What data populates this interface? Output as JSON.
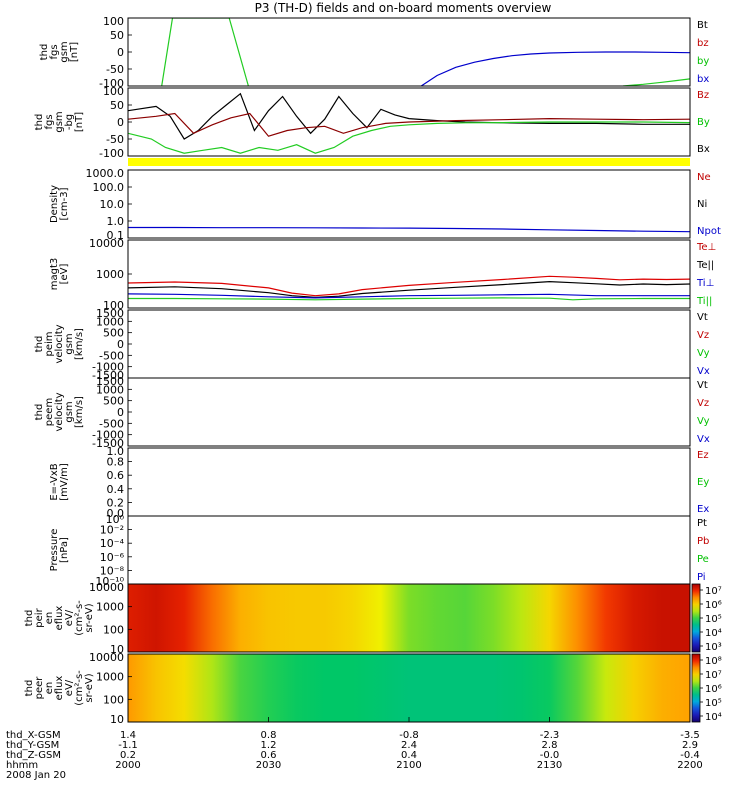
{
  "title": "P3 (TH-D) fields and on-board moments overview",
  "chart_data": {
    "type": "line",
    "title": "P3 (TH-D) fields and on-board moments overview",
    "x_axis": {
      "tick_labels": {
        "X_GSM": [
          "1.4",
          "0.8",
          "-0.8",
          "-2.3",
          "-3.5"
        ],
        "Y_GSM": [
          "-1.1",
          "1.2",
          "2.4",
          "2.8",
          "2.9"
        ],
        "Z_GSM": [
          "0.2",
          "0.6",
          "0.4",
          "-0.0",
          "-0.4"
        ],
        "hhmm": [
          "2000",
          "2030",
          "2100",
          "2130",
          "2200"
        ]
      },
      "row_labels": [
        "thd_X-GSM",
        "thd_Y-GSM",
        "thd_Z-GSM",
        "hhmm"
      ],
      "date_label": "2008 Jan 20",
      "range_minutes": [
        0,
        120
      ]
    },
    "panels": [
      {
        "ylabel": [
          "thd",
          "fgs",
          "gsm",
          "[nT]"
        ],
        "ylim": [
          -100,
          100
        ],
        "yticks": [
          "100",
          "50",
          "0",
          "-50",
          "-100"
        ],
        "legend": [
          {
            "name": "Bt",
            "color": "#000000"
          },
          {
            "name": "bz",
            "color": "#c00000"
          },
          {
            "name": "by",
            "color": "#00c000"
          },
          {
            "name": "bx",
            "color": "#0000cc"
          }
        ],
        "series": [
          {
            "name": "by",
            "color": "#22cc22",
            "x": [
              7.2,
              9.5,
              21.6,
              25.7
            ],
            "y": [
              -100,
              100,
              100,
              -100
            ]
          },
          {
            "name": "by",
            "color": "#22cc22",
            "x": [
              105.7,
              110,
              114,
              117,
              120
            ],
            "y": [
              -100,
              -95,
              -89,
              -84,
              -79
            ]
          },
          {
            "name": "bx",
            "color": "#0000cc",
            "x": [
              62.6,
              66,
              70,
              74,
              78,
              82,
              86,
              90,
              96,
              102,
              108,
              114,
              120
            ],
            "y": [
              -100,
              -69,
              -45,
              -30,
              -19,
              -11,
              -6,
              -3,
              -1,
              0,
              0,
              -1,
              -2
            ]
          }
        ]
      },
      {
        "ylabel": [
          "thd",
          "fgs",
          "gsm",
          "-bg",
          "[nT]"
        ],
        "ylim": [
          -120,
          120
        ],
        "yticks": [
          "100",
          "50",
          "0",
          "-50",
          "-100"
        ],
        "legend": [
          {
            "name": "Bz",
            "color": "#c00000"
          },
          {
            "name": "By",
            "color": "#00c000"
          },
          {
            "name": "Bx",
            "color": "#000000"
          }
        ],
        "series": [
          {
            "name": "Bx",
            "color": "#000000",
            "x": [
              0,
              6,
              9,
              12,
              15,
              18,
              21,
              24,
              27,
              30,
              33,
              36,
              39,
              42,
              45,
              48,
              51,
              54,
              57,
              60,
              66,
              72,
              80,
              90,
              100,
              110,
              120
            ],
            "y": [
              40,
              55,
              20,
              -60,
              -30,
              20,
              60,
              100,
              -30,
              40,
              90,
              20,
              -40,
              10,
              90,
              30,
              -20,
              45,
              25,
              12,
              5,
              0,
              -3,
              -5,
              -5,
              -8,
              -8
            ]
          },
          {
            "name": "Bz",
            "color": "#8b0000",
            "x": [
              0,
              6,
              10,
              14,
              18,
              22,
              26,
              30,
              34,
              38,
              42,
              46,
              50,
              55,
              60,
              70,
              80,
              90,
              100,
              110,
              120
            ],
            "y": [
              10,
              20,
              30,
              -40,
              -10,
              15,
              30,
              -50,
              -30,
              -20,
              -15,
              -40,
              -20,
              -5,
              0,
              5,
              8,
              12,
              10,
              8,
              10
            ]
          },
          {
            "name": "By",
            "color": "#22cc22",
            "x": [
              0,
              5,
              8,
              12,
              16,
              20,
              24,
              28,
              32,
              36,
              40,
              44,
              48,
              52,
              56,
              60,
              66,
              72,
              80,
              90,
              100,
              110,
              120
            ],
            "y": [
              -40,
              -60,
              -90,
              -110,
              -100,
              -90,
              -110,
              -90,
              -100,
              -80,
              -110,
              -90,
              -50,
              -30,
              -15,
              -10,
              -5,
              -3,
              -2,
              0,
              0,
              0,
              -2
            ]
          }
        ]
      },
      {
        "ylabel": [
          "Density",
          "[cm-3]"
        ],
        "scale": "log",
        "ylim": [
          0.1,
          2000
        ],
        "yticks": [
          "1000.0",
          "100.0",
          "10.0",
          "1.0",
          "0.1"
        ],
        "legend": [
          {
            "name": "Ne",
            "color": "#c00000"
          },
          {
            "name": "Ni",
            "color": "#000000"
          },
          {
            "name": "Npot",
            "color": "#0000cc"
          }
        ],
        "series": [
          {
            "name": "Npot",
            "color": "#0000cc",
            "x": [
              0,
              10,
              20,
              30,
              40,
              50,
              60,
              70,
              80,
              90,
              100,
              110,
              120
            ],
            "y": [
              0.46,
              0.46,
              0.45,
              0.45,
              0.44,
              0.43,
              0.42,
              0.4,
              0.37,
              0.33,
              0.3,
              0.27,
              0.25
            ]
          }
        ]
      },
      {
        "ylabel": [
          "magt3",
          "[eV]"
        ],
        "scale": "log",
        "ylim": [
          100,
          20000
        ],
        "yticks": [
          "10000",
          "1000",
          "100"
        ],
        "legend": [
          {
            "name": "Te⊥",
            "color": "#c00000"
          },
          {
            "name": "Te||",
            "color": "#000000"
          },
          {
            "name": "Ti⊥",
            "color": "#0000cc"
          },
          {
            "name": "Ti||",
            "color": "#00c000"
          }
        ],
        "series": [
          {
            "name": "Te⊥",
            "color": "#dd0000",
            "x": [
              0,
              10,
              20,
              30,
              35,
              40,
              45,
              50,
              60,
              70,
              80,
              90,
              95,
              100,
              105,
              110,
              115,
              120
            ],
            "y": [
              700,
              760,
              680,
              480,
              320,
              260,
              300,
              420,
              580,
              740,
              920,
              1180,
              1100,
              1000,
              900,
              950,
              920,
              950
            ]
          },
          {
            "name": "Te||",
            "color": "#000000",
            "x": [
              0,
              10,
              20,
              30,
              35,
              40,
              45,
              50,
              60,
              70,
              80,
              90,
              95,
              100,
              105,
              110,
              115,
              120
            ],
            "y": [
              480,
              520,
              450,
              330,
              260,
              230,
              250,
              310,
              400,
              500,
              620,
              780,
              720,
              660,
              600,
              650,
              620,
              650
            ]
          },
          {
            "name": "Ti⊥",
            "color": "#0000cc",
            "x": [
              0,
              10,
              20,
              30,
              40,
              50,
              60,
              70,
              80,
              90,
              100,
              110,
              120
            ],
            "y": [
              300,
              290,
              270,
              240,
              220,
              240,
              260,
              270,
              280,
              290,
              260,
              260,
              260
            ]
          },
          {
            "name": "Ti||",
            "color": "#22cc22",
            "x": [
              0,
              10,
              20,
              30,
              40,
              50,
              60,
              70,
              80,
              90,
              95,
              100,
              110,
              120
            ],
            "y": [
              210,
              210,
              205,
              200,
              190,
              200,
              210,
              215,
              220,
              215,
              190,
              205,
              210,
              210
            ]
          }
        ]
      },
      {
        "ylabel": [
          "thd",
          "peim",
          "velocity",
          "gsm",
          "[km/s]"
        ],
        "ylim": [
          -1500,
          1500
        ],
        "yticks": [
          "1500",
          "1000",
          "500",
          "0",
          "-500",
          "-1000",
          "-1500"
        ],
        "legend": [
          {
            "name": "Vt",
            "color": "#000000"
          },
          {
            "name": "Vz",
            "color": "#c00000"
          },
          {
            "name": "Vy",
            "color": "#00c000"
          },
          {
            "name": "Vx",
            "color": "#0000cc"
          }
        ],
        "series": []
      },
      {
        "ylabel": [
          "thd",
          "peem",
          "velocity",
          "gsm",
          "[km/s]"
        ],
        "ylim": [
          -1500,
          1500
        ],
        "yticks": [
          "1500",
          "1000",
          "500",
          "0",
          "-500",
          "-1000",
          "-1500"
        ],
        "legend": [
          {
            "name": "Vt",
            "color": "#000000"
          },
          {
            "name": "Vz",
            "color": "#c00000"
          },
          {
            "name": "Vy",
            "color": "#00c000"
          },
          {
            "name": "Vx",
            "color": "#0000cc"
          }
        ],
        "series": []
      },
      {
        "ylabel": [
          "E=-VxB",
          "[mV/m]"
        ],
        "ylim": [
          0,
          1
        ],
        "yticks": [
          "1.0",
          "0.8",
          "0.6",
          "0.4",
          "0.2",
          "0.0"
        ],
        "legend": [
          {
            "name": "Ez",
            "color": "#c00000"
          },
          {
            "name": "Ey",
            "color": "#00c000"
          },
          {
            "name": "Ex",
            "color": "#0000cc"
          }
        ],
        "series": []
      },
      {
        "ylabel": [
          "Pressure",
          "[nPa]"
        ],
        "scale": "log",
        "ylim": [
          1e-10,
          10
        ],
        "yticks": [
          "10⁰",
          "10⁻²",
          "10⁻⁴",
          "10⁻⁶",
          "10⁻⁸",
          "10⁻¹⁰"
        ],
        "legend": [
          {
            "name": "Pt",
            "color": "#000000"
          },
          {
            "name": "Pb",
            "color": "#c00000"
          },
          {
            "name": "Pe",
            "color": "#00c000"
          },
          {
            "name": "Pi",
            "color": "#0000cc"
          }
        ],
        "series": []
      },
      {
        "type": "heatmap",
        "ylabel": [
          "thd",
          "peir",
          "en",
          "eflux",
          "eV/",
          "(cm²-s-",
          "sr-eV)"
        ],
        "scale": "log",
        "ylim": [
          10,
          20000
        ],
        "yticks": [
          "10000",
          "1000",
          "100",
          "10"
        ],
        "colorbar_ticks": [
          "10⁷",
          "10⁶",
          "10⁵",
          "10⁴",
          "10³"
        ],
        "colorbar_range_log10": [
          2.5,
          7.2
        ],
        "time_profile_log10": {
          "x": [
            0,
            6,
            12,
            18,
            24,
            30,
            36,
            42,
            48,
            54,
            60,
            66,
            72,
            78,
            84,
            90,
            96,
            102,
            108,
            114,
            120
          ],
          "y": [
            6.85,
            6.95,
            6.8,
            6.4,
            6.05,
            5.9,
            5.85,
            5.85,
            5.75,
            5.55,
            5.1,
            5.0,
            4.95,
            5.1,
            5.35,
            5.75,
            6.25,
            6.65,
            6.9,
            7.0,
            7.0
          ]
        }
      },
      {
        "type": "heatmap",
        "ylabel": [
          "thd",
          "peer",
          "en",
          "eflux",
          "eV/",
          "(cm²-s-",
          "sr-eV)"
        ],
        "scale": "log",
        "ylim": [
          7,
          20000
        ],
        "yticks": [
          "10000",
          "1000",
          "100",
          "10"
        ],
        "colorbar_ticks": [
          "10⁸",
          "10⁷",
          "10⁶",
          "10⁵",
          "10⁴"
        ],
        "colorbar_range_log10": [
          3.6,
          8.3
        ],
        "time_profile_log10": {
          "x": [
            0,
            6,
            12,
            18,
            24,
            30,
            36,
            42,
            48,
            54,
            60,
            66,
            72,
            78,
            84,
            90,
            96,
            102,
            108,
            114,
            120
          ],
          "y": [
            7.3,
            7.0,
            6.8,
            6.4,
            6.0,
            5.85,
            5.75,
            5.7,
            5.7,
            5.65,
            5.6,
            5.6,
            5.6,
            5.6,
            5.65,
            5.75,
            6.05,
            6.5,
            6.9,
            7.15,
            7.25
          ]
        }
      }
    ]
  }
}
